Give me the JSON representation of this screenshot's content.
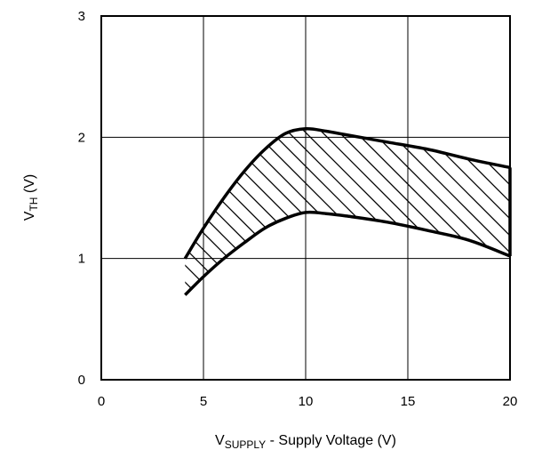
{
  "chart_data": {
    "type": "area",
    "xlabel": {
      "main": "V",
      "sub": "SUPPLY",
      "rest": " - Supply Voltage (V)"
    },
    "ylabel": {
      "main": "V",
      "sub": "TH",
      "rest": " (V)"
    },
    "xlim": [
      0,
      20
    ],
    "ylim": [
      0,
      3
    ],
    "x_ticks": [
      "0",
      "5",
      "10",
      "15",
      "20"
    ],
    "y_ticks": [
      "0",
      "1",
      "2",
      "3"
    ],
    "grid": true,
    "hatched_band": true,
    "series": [
      {
        "x": [
          4.1,
          5,
          6,
          7,
          8,
          9,
          10,
          11,
          12,
          14,
          16,
          18,
          20
        ],
        "y": [
          1.0,
          1.25,
          1.5,
          1.72,
          1.9,
          2.03,
          2.07,
          2.05,
          2.02,
          1.96,
          1.9,
          1.82,
          1.75
        ]
      },
      {
        "x": [
          4.1,
          5,
          6,
          7,
          8,
          9,
          10,
          11,
          12,
          14,
          16,
          18,
          20
        ],
        "y": [
          0.7,
          0.85,
          1.0,
          1.13,
          1.25,
          1.33,
          1.38,
          1.37,
          1.35,
          1.3,
          1.23,
          1.15,
          1.02
        ]
      }
    ]
  }
}
